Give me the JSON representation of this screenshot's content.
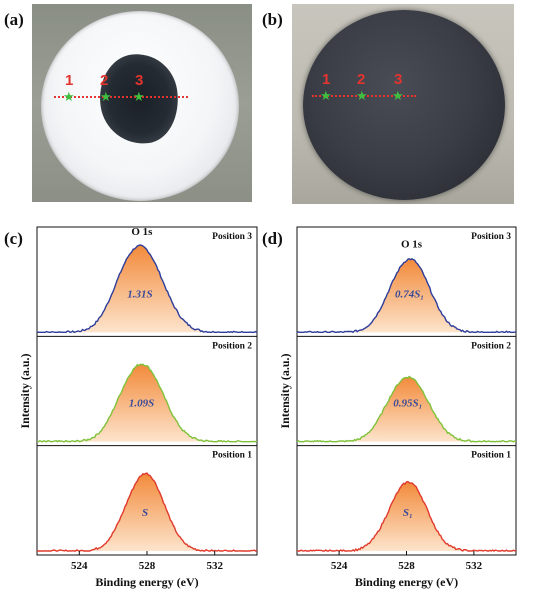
{
  "panels": {
    "a": {
      "letter": "(a)",
      "markers": [
        "1",
        "2",
        "3"
      ]
    },
    "b": {
      "letter": "(b)",
      "markers": [
        "1",
        "2",
        "3"
      ]
    },
    "c": {
      "letter": "(c)"
    },
    "d": {
      "letter": "(d)"
    }
  },
  "colors": {
    "position_3": "#2e3d9a",
    "position_2": "#7fc23a",
    "position_1": "#e03a2c",
    "fill_top": "#f28a3a",
    "fill_bottom": "#fde4cc",
    "marker_line": "#e3342f",
    "marker_star": "#3fbf3f"
  },
  "chart_data": [
    {
      "type": "area",
      "panel": "(c)",
      "xlabel": "Binding energy (eV)",
      "ylabel": "Intensity (a.u.)",
      "xlim": [
        521.5,
        534.5
      ],
      "xticks": [
        524,
        528,
        532
      ],
      "series": [
        {
          "name": "Position 3",
          "peak_label": "O 1s",
          "area_label": "1.31S",
          "center": 527.7,
          "sigma": 1.25,
          "amplitude": 1.0
        },
        {
          "name": "Position 2",
          "area_label": "1.09S",
          "center": 527.8,
          "sigma": 1.2,
          "amplitude": 0.9
        },
        {
          "name": "Position 1",
          "area_label": "S",
          "center": 528.0,
          "sigma": 1.05,
          "amplitude": 0.9
        }
      ]
    },
    {
      "type": "area",
      "panel": "(d)",
      "xlabel": "Binding energy (eV)",
      "ylabel": "Intensity (a.u.)",
      "xlim": [
        521.5,
        534.5
      ],
      "xticks": [
        524,
        528,
        532
      ],
      "series": [
        {
          "name": "Position 3",
          "peak_label": "O 1s",
          "area_label": "0.74S₁",
          "center": 528.3,
          "sigma": 1.1,
          "amplitude": 0.85
        },
        {
          "name": "Position 2",
          "area_label": "0.95S₁",
          "center": 528.2,
          "sigma": 1.15,
          "amplitude": 0.75
        },
        {
          "name": "Position 1",
          "area_label": "S₁",
          "center": 528.2,
          "sigma": 1.05,
          "amplitude": 0.8
        }
      ]
    }
  ]
}
